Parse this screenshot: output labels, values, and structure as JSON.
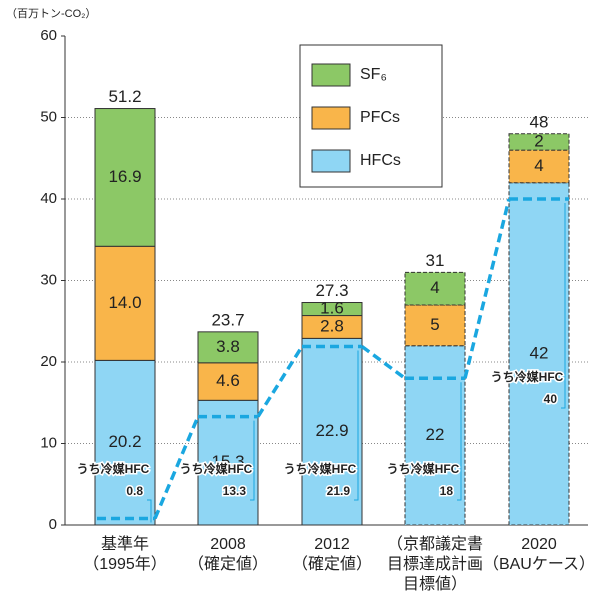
{
  "chart_data": {
    "type": "stacked-bar",
    "y_axis_label": "（百万トン-CO₂）",
    "categories": [
      [
        "基準年",
        "（1995年）"
      ],
      [
        "2008",
        "（確定値）"
      ],
      [
        "2012",
        "（確定値）"
      ],
      [
        "（京都議定書",
        "目標達成計画",
        "目標値）"
      ],
      [
        "2020",
        "（BAUケース）"
      ]
    ],
    "series": [
      {
        "name": "HFCs",
        "color": "#8fd6f4",
        "values": [
          20.2,
          15.3,
          22.9,
          22,
          42
        ]
      },
      {
        "name": "PFCs",
        "color": "#f9b54a",
        "values": [
          14.0,
          4.6,
          2.8,
          5,
          4
        ],
        "value_labels": [
          "14.0",
          "4.6",
          "2.8",
          "5",
          "4"
        ]
      },
      {
        "name": "SF₆",
        "color": "#8cc866",
        "values": [
          16.9,
          3.8,
          1.6,
          4,
          2
        ]
      }
    ],
    "totals": [
      51.2,
      23.7,
      27.3,
      31,
      48
    ],
    "dashed": [
      false,
      false,
      false,
      true,
      true
    ],
    "refrigerant": {
      "name": "うち冷媒HFC",
      "color": "#1aa7e0",
      "values": [
        0.8,
        13.3,
        21.9,
        18,
        40
      ]
    },
    "ylim": [
      0,
      60
    ],
    "yticks": [
      0,
      10,
      20,
      30,
      40,
      50,
      60
    ],
    "grid": true
  }
}
